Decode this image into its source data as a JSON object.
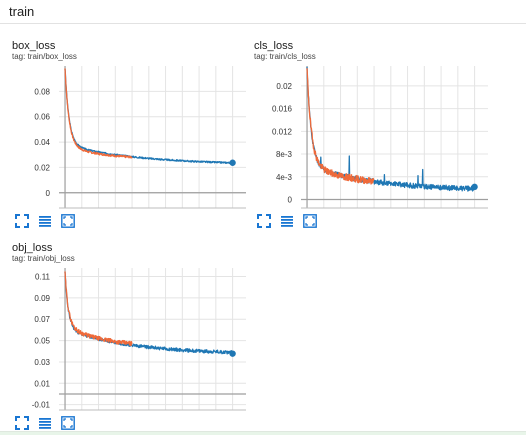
{
  "section": {
    "title": "train"
  },
  "colors": {
    "blue": "#1f77b4",
    "orange": "#ef6a3a",
    "grid": "#e4e4e4",
    "axis": "#9e9e9e",
    "icon": "#1976d2"
  },
  "toolbar_icons": [
    "fullscreen-icon",
    "data-lines-icon",
    "fit-domain-icon"
  ],
  "cards": [
    {
      "id": "box",
      "title": "box_loss",
      "tag": "tag: train/box_loss",
      "chart_data": {
        "type": "line",
        "x_ticks": [
          0,
          100,
          200,
          300,
          400,
          500
        ],
        "y_ticks": [
          0,
          0.02,
          0.04,
          0.06,
          0.08
        ],
        "y_tick_labels": [
          "0",
          "0.02",
          "0.04",
          "0.06",
          "0.08"
        ],
        "xlim": [
          -18,
          540
        ],
        "ylim": [
          -0.012,
          0.1
        ],
        "series": [
          {
            "color": "blue",
            "start": 0.098,
            "floor": 0.022,
            "tau": 12,
            "tail": 0.016,
            "tail_tau": 220,
            "noise": 0.0006,
            "n": 500,
            "seed": 3,
            "end_marker": true
          },
          {
            "color": "orange",
            "start": 0.098,
            "floor": 0.026,
            "tau": 12,
            "tail": 0.011,
            "tail_tau": 120,
            "noise": 0.0008,
            "n": 200,
            "seed": 7
          }
        ]
      }
    },
    {
      "id": "cls",
      "title": "cls_loss",
      "tag": "tag: train/cls_loss",
      "chart_data": {
        "type": "line",
        "x_ticks": [
          0,
          100,
          200,
          300,
          400,
          500
        ],
        "y_ticks": [
          0,
          0.004,
          0.008,
          0.012,
          0.016,
          0.02
        ],
        "y_tick_labels": [
          "0",
          "4e-3",
          "8e-3",
          "0.012",
          "0.016",
          "0.02"
        ],
        "xlim": [
          -18,
          540
        ],
        "ylim": [
          -0.0015,
          0.0235
        ],
        "series": [
          {
            "color": "blue",
            "start": 0.023,
            "floor": 0.0015,
            "tau": 13,
            "tail": 0.0045,
            "tail_tau": 200,
            "noise": 0.00045,
            "spikes": true,
            "n": 500,
            "seed": 11,
            "end_marker": true
          },
          {
            "color": "orange",
            "start": 0.023,
            "floor": 0.0025,
            "tau": 13,
            "tail": 0.0038,
            "tail_tau": 120,
            "noise": 0.0006,
            "n": 200,
            "seed": 19
          }
        ]
      }
    },
    {
      "id": "obj",
      "title": "obj_loss",
      "tag": "tag: train/obj_loss",
      "chart_data": {
        "type": "line",
        "x_ticks": [
          0,
          100,
          200,
          300,
          400,
          500
        ],
        "y_ticks": [
          -0.01,
          0.01,
          0.03,
          0.05,
          0.07,
          0.09,
          0.11
        ],
        "y_tick_labels": [
          "-0.01",
          "0.01",
          "0.03",
          "0.05",
          "0.07",
          "0.09",
          "0.11"
        ],
        "xlim": [
          -18,
          540
        ],
        "ylim": [
          -0.015,
          0.118
        ],
        "series": [
          {
            "color": "blue",
            "start": 0.113,
            "floor": 0.037,
            "tau": 10,
            "tail": 0.024,
            "tail_tau": 200,
            "noise": 0.0016,
            "n": 500,
            "seed": 23,
            "end_marker": true
          },
          {
            "color": "orange",
            "start": 0.113,
            "floor": 0.044,
            "tau": 10,
            "tail": 0.02,
            "tail_tau": 110,
            "noise": 0.002,
            "n": 200,
            "seed": 29
          }
        ]
      }
    }
  ]
}
